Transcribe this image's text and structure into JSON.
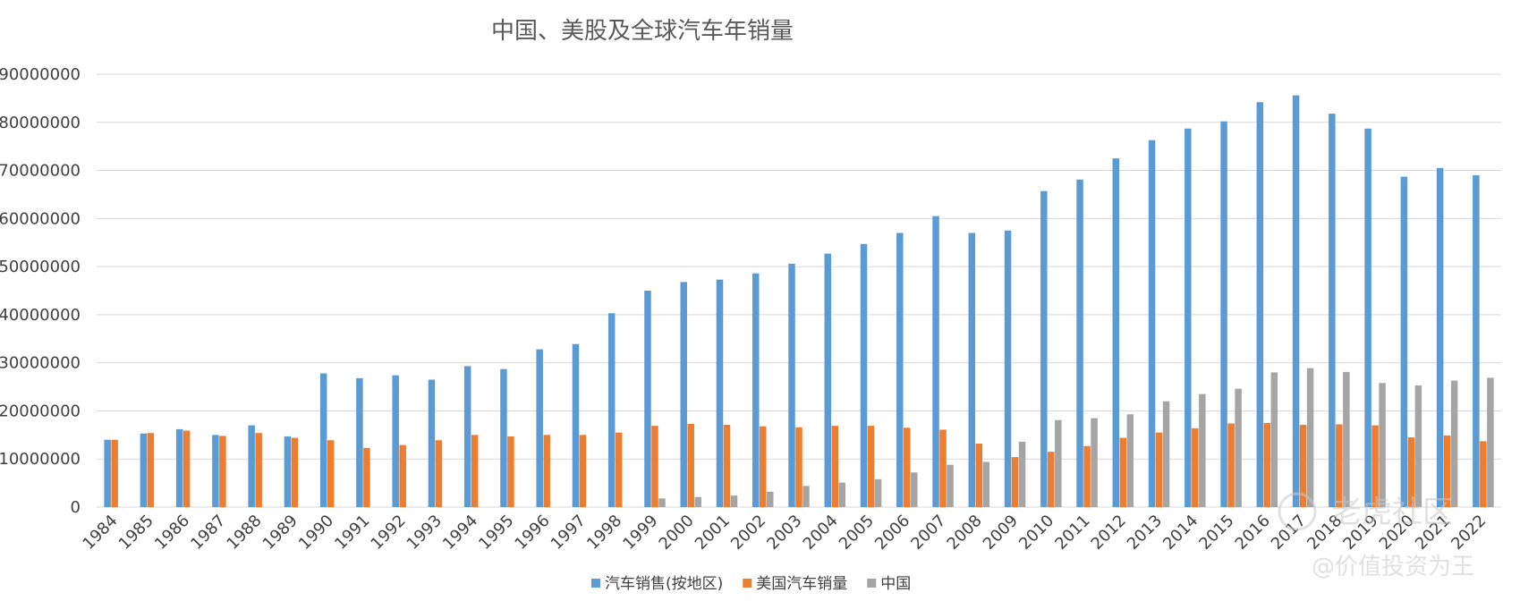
{
  "chart_data": {
    "type": "bar",
    "title": "中国、美股及全球汽车年销量",
    "xlabel": "",
    "ylabel": "",
    "ylim": [
      0,
      90000000
    ],
    "yticks": [
      0,
      10000000,
      20000000,
      30000000,
      40000000,
      50000000,
      60000000,
      70000000,
      80000000,
      90000000
    ],
    "ytick_labels": [
      "0",
      "10000000",
      "20000000",
      "30000000",
      "40000000",
      "50000000",
      "60000000",
      "70000000",
      "80000000",
      "90000000"
    ],
    "grid": true,
    "legend_position": "bottom",
    "categories": [
      "1984",
      "1985",
      "1986",
      "1987",
      "1988",
      "1989",
      "1990",
      "1991",
      "1992",
      "1993",
      "1994",
      "1995",
      "1996",
      "1997",
      "1998",
      "1999",
      "2000",
      "2001",
      "2002",
      "2003",
      "2004",
      "2005",
      "2006",
      "2007",
      "2008",
      "2009",
      "2010",
      "2011",
      "2012",
      "2013",
      "2014",
      "2015",
      "2016",
      "2017",
      "2018",
      "2019",
      "2020",
      "2021",
      "2022"
    ],
    "series": [
      {
        "name": "汽车销售(按地区)",
        "color": "#5b9bd5",
        "values": [
          14000000,
          15300000,
          16200000,
          15000000,
          17000000,
          14700000,
          27800000,
          26800000,
          27400000,
          26500000,
          29300000,
          28700000,
          32800000,
          33900000,
          40300000,
          45000000,
          46800000,
          47300000,
          48600000,
          50600000,
          52700000,
          54700000,
          57000000,
          60500000,
          57000000,
          57500000,
          65700000,
          68100000,
          72500000,
          76300000,
          78700000,
          80200000,
          84200000,
          85600000,
          81800000,
          78700000,
          68700000,
          70500000,
          69000000
        ]
      },
      {
        "name": "美国汽车销量",
        "color": "#ed7d31",
        "values": [
          14000000,
          15400000,
          15900000,
          14800000,
          15400000,
          14400000,
          13900000,
          12300000,
          12900000,
          13900000,
          15000000,
          14700000,
          15000000,
          15000000,
          15500000,
          16900000,
          17300000,
          17100000,
          16800000,
          16600000,
          16900000,
          16900000,
          16500000,
          16100000,
          13200000,
          10400000,
          11500000,
          12700000,
          14400000,
          15500000,
          16400000,
          17400000,
          17500000,
          17100000,
          17200000,
          17000000,
          14500000,
          14900000,
          13700000
        ]
      },
      {
        "name": "中国",
        "color": "#a5a5a5",
        "values": [
          0,
          0,
          0,
          0,
          0,
          0,
          0,
          0,
          0,
          0,
          0,
          0,
          0,
          0,
          0,
          1800000,
          2100000,
          2400000,
          3200000,
          4400000,
          5100000,
          5800000,
          7200000,
          8800000,
          9400000,
          13600000,
          18100000,
          18500000,
          19300000,
          22000000,
          23500000,
          24600000,
          28000000,
          28900000,
          28100000,
          25800000,
          25300000,
          26300000,
          26900000
        ]
      }
    ]
  },
  "watermark": {
    "brand": "老虎社区",
    "handle": "@价值投资为王"
  }
}
